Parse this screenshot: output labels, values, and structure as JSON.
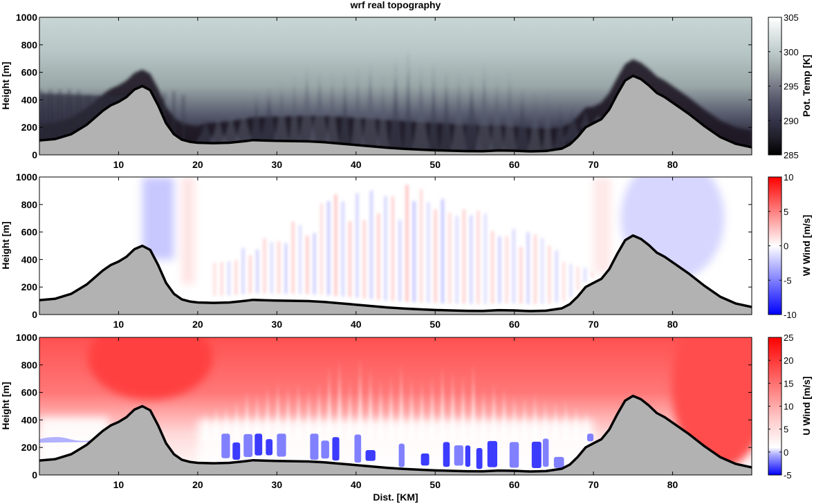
{
  "figure_title": "wrf real topography",
  "chart_data": [
    {
      "type": "heatmap",
      "id": "theta",
      "title": "wrf real topography",
      "xlabel": "",
      "ylabel": "Height [m]",
      "colorbar_label": "Pot. Temp [K]",
      "xlim": [
        0,
        90
      ],
      "ylim": [
        0,
        1000
      ],
      "xticks": [
        10,
        20,
        30,
        40,
        50,
        60,
        70,
        80
      ],
      "yticks": [
        0,
        200,
        400,
        600,
        800,
        1000
      ],
      "clim": [
        285,
        305
      ],
      "cticks": [
        285,
        290,
        295,
        300,
        305
      ],
      "colormap": [
        "#000000",
        "#1e1d27",
        "#34344a",
        "#515367",
        "#767986",
        "#9da6a8",
        "#bfcccc",
        "#dfe6e6",
        "#ffffff"
      ]
    },
    {
      "type": "heatmap",
      "id": "w",
      "title": "",
      "xlabel": "",
      "ylabel": "Height [m]",
      "colorbar_label": "W Wind [m/s]",
      "xlim": [
        0,
        90
      ],
      "ylim": [
        0,
        1000
      ],
      "xticks": [
        10,
        20,
        30,
        40,
        50,
        60,
        70,
        80
      ],
      "yticks": [
        0,
        200,
        400,
        600,
        800,
        1000
      ],
      "clim": [
        -10,
        10
      ],
      "cticks": [
        -10,
        -5,
        0,
        5,
        10
      ],
      "colormap": [
        "#0000ff",
        "#8080ff",
        "#ffffff",
        "#ff8080",
        "#ff0000"
      ]
    },
    {
      "type": "heatmap",
      "id": "u",
      "title": "",
      "xlabel": "Dist. [KM]",
      "ylabel": "Height [m]",
      "colorbar_label": "U Wind [m/s]",
      "xlim": [
        0,
        90
      ],
      "ylim": [
        0,
        1000
      ],
      "xticks": [
        10,
        20,
        30,
        40,
        50,
        60,
        70,
        80
      ],
      "yticks": [
        0,
        200,
        400,
        600,
        800,
        1000
      ],
      "clim": [
        -5,
        25
      ],
      "cticks": [
        -5,
        0,
        5,
        10,
        15,
        20,
        25
      ],
      "colormap": [
        "#0000ff",
        "#9999ff",
        "#ffffff",
        "#ff9999",
        "#ff0000"
      ]
    }
  ],
  "terrain": {
    "fill": "#b2b2b2",
    "line": "#000000",
    "x": [
      0,
      2,
      4,
      6,
      8,
      9,
      10,
      11,
      12,
      13,
      14,
      15,
      16,
      17,
      18,
      19,
      20,
      22,
      24,
      26,
      27,
      28,
      30,
      32,
      34,
      36,
      38,
      40,
      42,
      44,
      46,
      48,
      50,
      52,
      54,
      56,
      58,
      60,
      62,
      64,
      66,
      67,
      68,
      69,
      70,
      71,
      72,
      73,
      74,
      75,
      76,
      77,
      78,
      79,
      80,
      82,
      84,
      86,
      88,
      90
    ],
    "height": [
      105,
      115,
      150,
      220,
      320,
      360,
      385,
      420,
      475,
      500,
      470,
      360,
      230,
      150,
      110,
      95,
      88,
      85,
      88,
      100,
      107,
      105,
      102,
      100,
      98,
      92,
      82,
      72,
      62,
      52,
      44,
      38,
      33,
      30,
      27,
      26,
      32,
      30,
      25,
      28,
      45,
      75,
      130,
      200,
      230,
      260,
      330,
      440,
      540,
      575,
      550,
      505,
      450,
      420,
      380,
      300,
      210,
      130,
      80,
      55
    ]
  }
}
